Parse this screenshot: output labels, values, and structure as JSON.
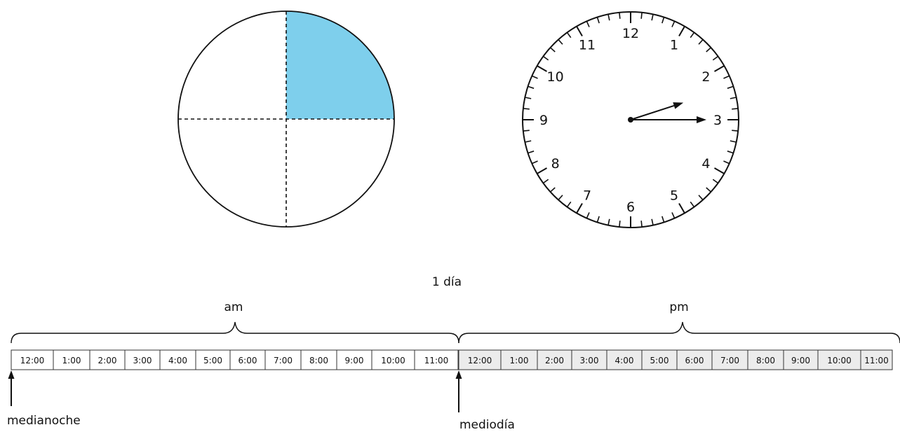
{
  "fraction_circle": {
    "total_parts": 4,
    "shaded_parts": 1,
    "shaded_quadrant": "top-right",
    "fill_color": "#7ecfec"
  },
  "clock": {
    "numbers": [
      "12",
      "1",
      "2",
      "3",
      "4",
      "5",
      "6",
      "7",
      "8",
      "9",
      "10",
      "11"
    ],
    "hour_hand_points_to": 2.4,
    "minute_hand_points_to": 15
  },
  "timeline": {
    "title": "1 día",
    "am_label": "am",
    "pm_label": "pm",
    "hours": [
      "12:00",
      "1:00",
      "2:00",
      "3:00",
      "4:00",
      "5:00",
      "6:00",
      "7:00",
      "8:00",
      "9:00",
      "10:00",
      "11:00"
    ],
    "midnight_label": "medianoche",
    "noon_label": "mediodía",
    "pm_fill": "#ececec"
  }
}
